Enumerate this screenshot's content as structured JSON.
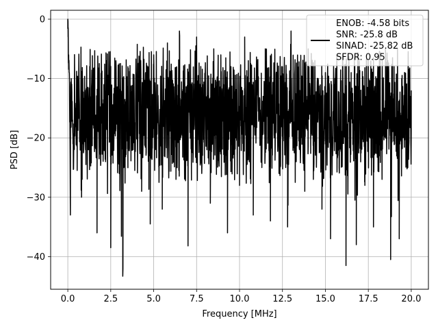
{
  "chart_data": {
    "type": "line",
    "title": "",
    "xlabel": "Frequency [MHz]",
    "ylabel": "PSD [dB]",
    "xlim": [
      -1.0,
      21.0
    ],
    "ylim": [
      -45.5,
      1.5
    ],
    "xticks": [
      0.0,
      2.5,
      5.0,
      7.5,
      10.0,
      12.5,
      15.0,
      17.5,
      20.0
    ],
    "xtick_labels": [
      "0.0",
      "2.5",
      "5.0",
      "7.5",
      "10.0",
      "12.5",
      "15.0",
      "17.5",
      "20.0"
    ],
    "yticks": [
      0,
      -10,
      -20,
      -30,
      -40
    ],
    "ytick_labels": [
      "0",
      "−10",
      "−20",
      "−30",
      "−40"
    ],
    "grid": true,
    "legend_position": "top-right",
    "legend": [
      "ENOB: -4.58 bits",
      "SNR: -25.8 dB",
      "SINAD: -25.82 dB",
      "SFDR: 0.95"
    ],
    "series": [
      {
        "color": "#000000",
        "x": [
          0.0,
          0.02,
          0.05,
          0.1,
          0.15,
          0.2,
          0.3,
          0.5,
          0.8,
          1.0,
          1.2,
          1.5,
          1.7,
          2.0,
          2.2,
          2.5,
          2.8,
          3.0,
          3.2,
          3.5,
          3.8,
          4.0,
          4.3,
          4.5,
          4.8,
          5.0,
          5.3,
          5.5,
          5.8,
          6.0,
          6.3,
          6.5,
          6.8,
          7.0,
          7.2,
          7.5,
          7.8,
          8.0,
          8.3,
          8.5,
          8.8,
          9.0,
          9.3,
          9.5,
          9.8,
          10.0,
          10.3,
          10.5,
          10.8,
          11.0,
          11.3,
          11.5,
          11.8,
          12.0,
          12.3,
          12.5,
          12.8,
          13.0,
          13.3,
          13.5,
          13.8,
          14.0,
          14.3,
          14.5,
          14.8,
          15.0,
          15.3,
          15.5,
          15.8,
          16.0,
          16.2,
          16.5,
          16.8,
          17.0,
          17.3,
          17.5,
          17.8,
          18.0,
          18.3,
          18.5,
          18.8,
          19.0,
          19.3,
          19.5,
          19.8,
          20.0
        ],
        "y": [
          0.0,
          -3.0,
          -6.0,
          -12.0,
          -33.0,
          -10.0,
          -21.0,
          -14.0,
          -30.0,
          -12.0,
          -22.0,
          -9.0,
          -36.0,
          -15.0,
          -24.0,
          -38.5,
          -7.0,
          -26.0,
          -43.3,
          -8.0,
          -22.0,
          -10.0,
          -29.0,
          -12.0,
          -34.5,
          -6.0,
          -20.0,
          -32.0,
          -4.0,
          -21.0,
          -27.0,
          -2.0,
          -23.0,
          -38.2,
          -11.0,
          -3.0,
          -26.0,
          -9.0,
          -31.0,
          -5.0,
          -24.0,
          -14.0,
          -36.0,
          -8.0,
          -20.0,
          -28.0,
          -3.0,
          -22.0,
          -33.0,
          -10.0,
          -25.0,
          -5.0,
          -34.0,
          -14.0,
          -26.0,
          -8.0,
          -35.0,
          -2.0,
          -24.0,
          -12.0,
          -29.0,
          -5.0,
          -27.0,
          -14.0,
          -32.0,
          -9.0,
          -37.0,
          -11.0,
          -25.0,
          -6.0,
          -41.5,
          -9.0,
          -38.0,
          -13.0,
          -28.0,
          -7.0,
          -35.0,
          -10.0,
          -27.0,
          -5.0,
          -40.5,
          -8.0,
          -37.0,
          -14.0,
          -25.0,
          -12.0
        ],
        "linewidth": 1.5
      }
    ]
  }
}
